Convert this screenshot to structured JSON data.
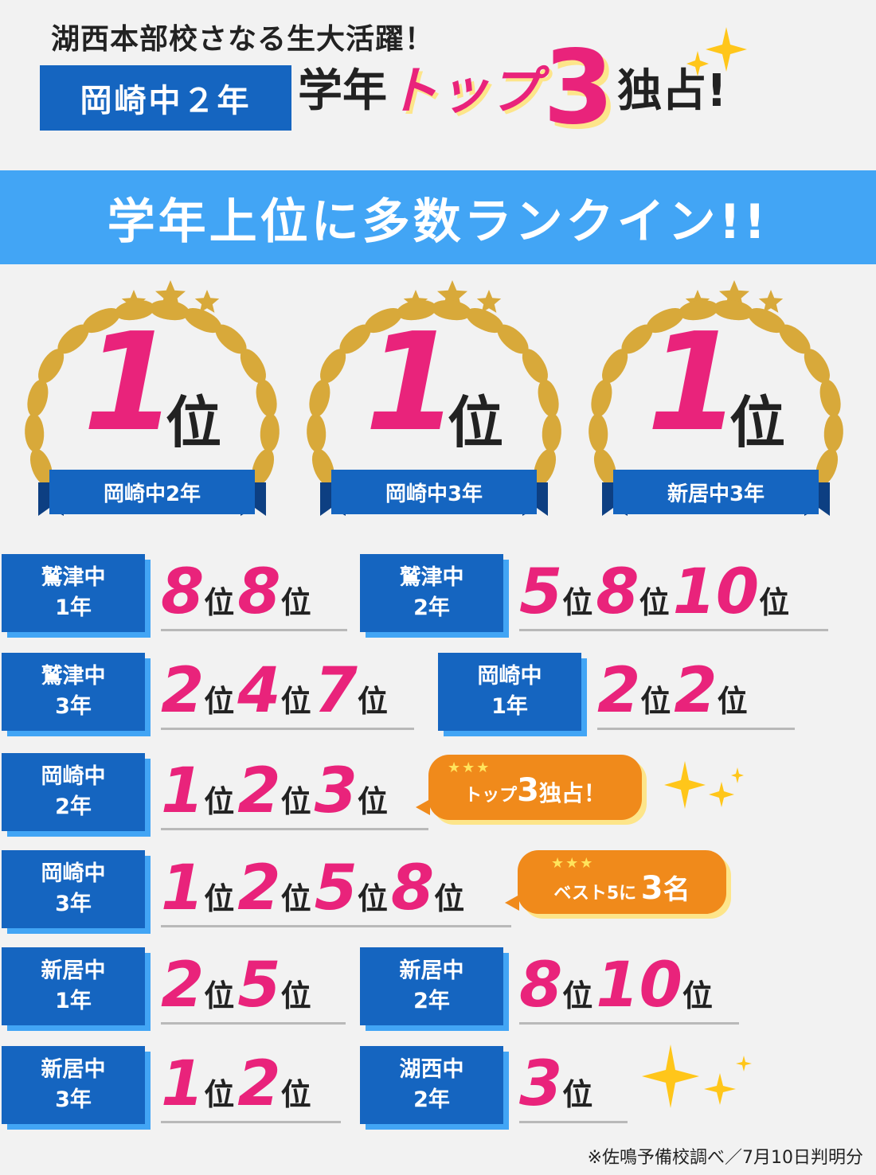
{
  "header": {
    "headline": "湖西本部校さなる生大活躍！",
    "badge": "岡崎中２年",
    "title_pre": "学年",
    "title_top": "トップ",
    "title_num": "3",
    "title_post": "独占!"
  },
  "banner": "学年上位に多数ランクイン!!",
  "laurels": [
    {
      "num": "1",
      "unit": "位",
      "school": "岡崎中2年"
    },
    {
      "num": "1",
      "unit": "位",
      "school": "岡崎中3年"
    },
    {
      "num": "1",
      "unit": "位",
      "school": "新居中3年"
    }
  ],
  "rank_unit": "位",
  "rows": [
    {
      "line1": "鷲津中",
      "line2": "1年",
      "ranks": [
        "8",
        "8"
      ]
    },
    {
      "line1": "鷲津中",
      "line2": "2年",
      "ranks": [
        "5",
        "8",
        "10"
      ]
    },
    {
      "line1": "鷲津中",
      "line2": "3年",
      "ranks": [
        "2",
        "4",
        "7"
      ]
    },
    {
      "line1": "岡崎中",
      "line2": "1年",
      "ranks": [
        "2",
        "2"
      ]
    },
    {
      "line1": "岡崎中",
      "line2": "2年",
      "ranks": [
        "1",
        "2",
        "3"
      ]
    },
    {
      "line1": "岡崎中",
      "line2": "3年",
      "ranks": [
        "1",
        "2",
        "5",
        "8"
      ]
    },
    {
      "line1": "新居中",
      "line2": "1年",
      "ranks": [
        "2",
        "5"
      ]
    },
    {
      "line1": "新居中",
      "line2": "2年",
      "ranks": [
        "8",
        "10"
      ]
    },
    {
      "line1": "新居中",
      "line2": "3年",
      "ranks": [
        "1",
        "2"
      ]
    },
    {
      "line1": "湖西中",
      "line2": "2年",
      "ranks": [
        "3"
      ]
    }
  ],
  "bubbles": [
    {
      "stars": "★★★",
      "pre": "トップ",
      "num": "3",
      "post": "独占！"
    },
    {
      "stars": "★★★",
      "pre": "ベスト5に",
      "num": "3",
      "post": "名"
    }
  ],
  "footnote": "※佐鳴予備校調べ／7月10日判明分",
  "colors": {
    "blue": "#1565c0",
    "light_blue": "#42a5f5",
    "pink": "#e9237b",
    "gold": "#d8a93a",
    "orange": "#f08a1b"
  }
}
